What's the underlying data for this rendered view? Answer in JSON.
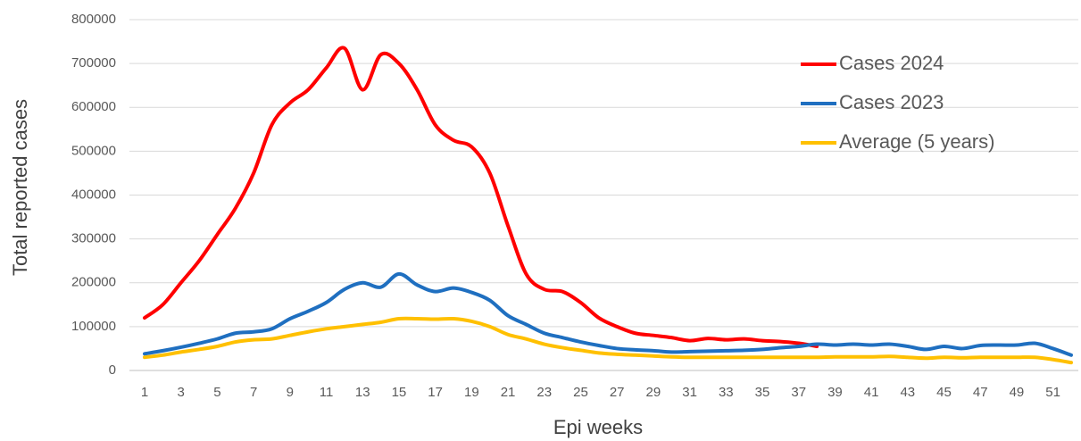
{
  "chart_data": {
    "type": "line",
    "x_label": "Epi weeks",
    "y_label": "Total reported cases",
    "x": [
      1,
      2,
      3,
      4,
      5,
      6,
      7,
      8,
      9,
      10,
      11,
      12,
      13,
      14,
      15,
      16,
      17,
      18,
      19,
      20,
      21,
      22,
      23,
      24,
      25,
      26,
      27,
      28,
      29,
      30,
      31,
      32,
      33,
      34,
      35,
      36,
      37,
      38,
      39,
      40,
      41,
      42,
      43,
      44,
      45,
      46,
      47,
      48,
      49,
      50,
      51,
      52
    ],
    "xlim": [
      1,
      52
    ],
    "xticks": [
      1,
      3,
      5,
      7,
      9,
      11,
      13,
      15,
      17,
      19,
      21,
      23,
      25,
      27,
      29,
      31,
      33,
      35,
      37,
      39,
      41,
      43,
      45,
      47,
      49,
      51
    ],
    "ylim": [
      0,
      800000
    ],
    "yticks": [
      0,
      100000,
      200000,
      300000,
      400000,
      500000,
      600000,
      700000,
      800000
    ],
    "grid": true,
    "legend": "upper right",
    "series": [
      {
        "name": "Cases 2024",
        "color": "#ff0000",
        "values": [
          120000,
          150000,
          200000,
          250000,
          310000,
          370000,
          450000,
          560000,
          610000,
          640000,
          690000,
          735000,
          640000,
          720000,
          700000,
          640000,
          560000,
          525000,
          510000,
          450000,
          330000,
          220000,
          185000,
          180000,
          155000,
          120000,
          100000,
          85000,
          80000,
          75000,
          68000,
          73000,
          70000,
          72000,
          68000,
          66000,
          62000,
          55000,
          null,
          null,
          null,
          null,
          null,
          null,
          null,
          null,
          null,
          null,
          null,
          null,
          null,
          null
        ]
      },
      {
        "name": "Cases 2023",
        "color": "#1f6fc0",
        "values": [
          38000,
          45000,
          53000,
          62000,
          72000,
          85000,
          88000,
          95000,
          118000,
          135000,
          155000,
          185000,
          200000,
          190000,
          220000,
          195000,
          180000,
          188000,
          178000,
          160000,
          125000,
          105000,
          85000,
          75000,
          65000,
          57000,
          50000,
          47000,
          45000,
          42000,
          43000,
          44000,
          45000,
          46000,
          48000,
          52000,
          55000,
          60000,
          58000,
          60000,
          58000,
          60000,
          55000,
          48000,
          55000,
          50000,
          57000,
          58000,
          58000,
          62000,
          50000,
          35000
        ]
      },
      {
        "name": "Average (5 years)",
        "color": "#ffc000",
        "values": [
          30000,
          35000,
          42000,
          48000,
          55000,
          65000,
          70000,
          72000,
          80000,
          88000,
          95000,
          100000,
          105000,
          110000,
          118000,
          118000,
          117000,
          118000,
          112000,
          100000,
          82000,
          72000,
          60000,
          52000,
          46000,
          40000,
          37000,
          35000,
          33000,
          31000,
          30000,
          30000,
          30000,
          30000,
          30000,
          30000,
          30000,
          30000,
          31000,
          31000,
          31000,
          32000,
          30000,
          28000,
          30000,
          29000,
          30000,
          30000,
          30000,
          30000,
          25000,
          18000
        ]
      }
    ]
  }
}
